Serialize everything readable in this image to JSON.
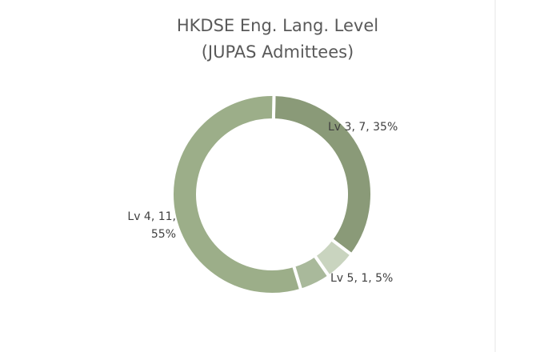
{
  "chart_data": {
    "type": "donut",
    "title": "HKDSE Eng. Lang. Level",
    "subtitle": "(JUPAS Admittees)",
    "categories": [
      "Lv 3, 7, 35%",
      null,
      "Lv 5, 1, 5%",
      "Lv 4, 11, 55%"
    ],
    "values": [
      35,
      5,
      5,
      55
    ],
    "colors": [
      "#8a9a78",
      "#c9d4bf",
      "#a9b99b",
      "#9cae89"
    ]
  }
}
